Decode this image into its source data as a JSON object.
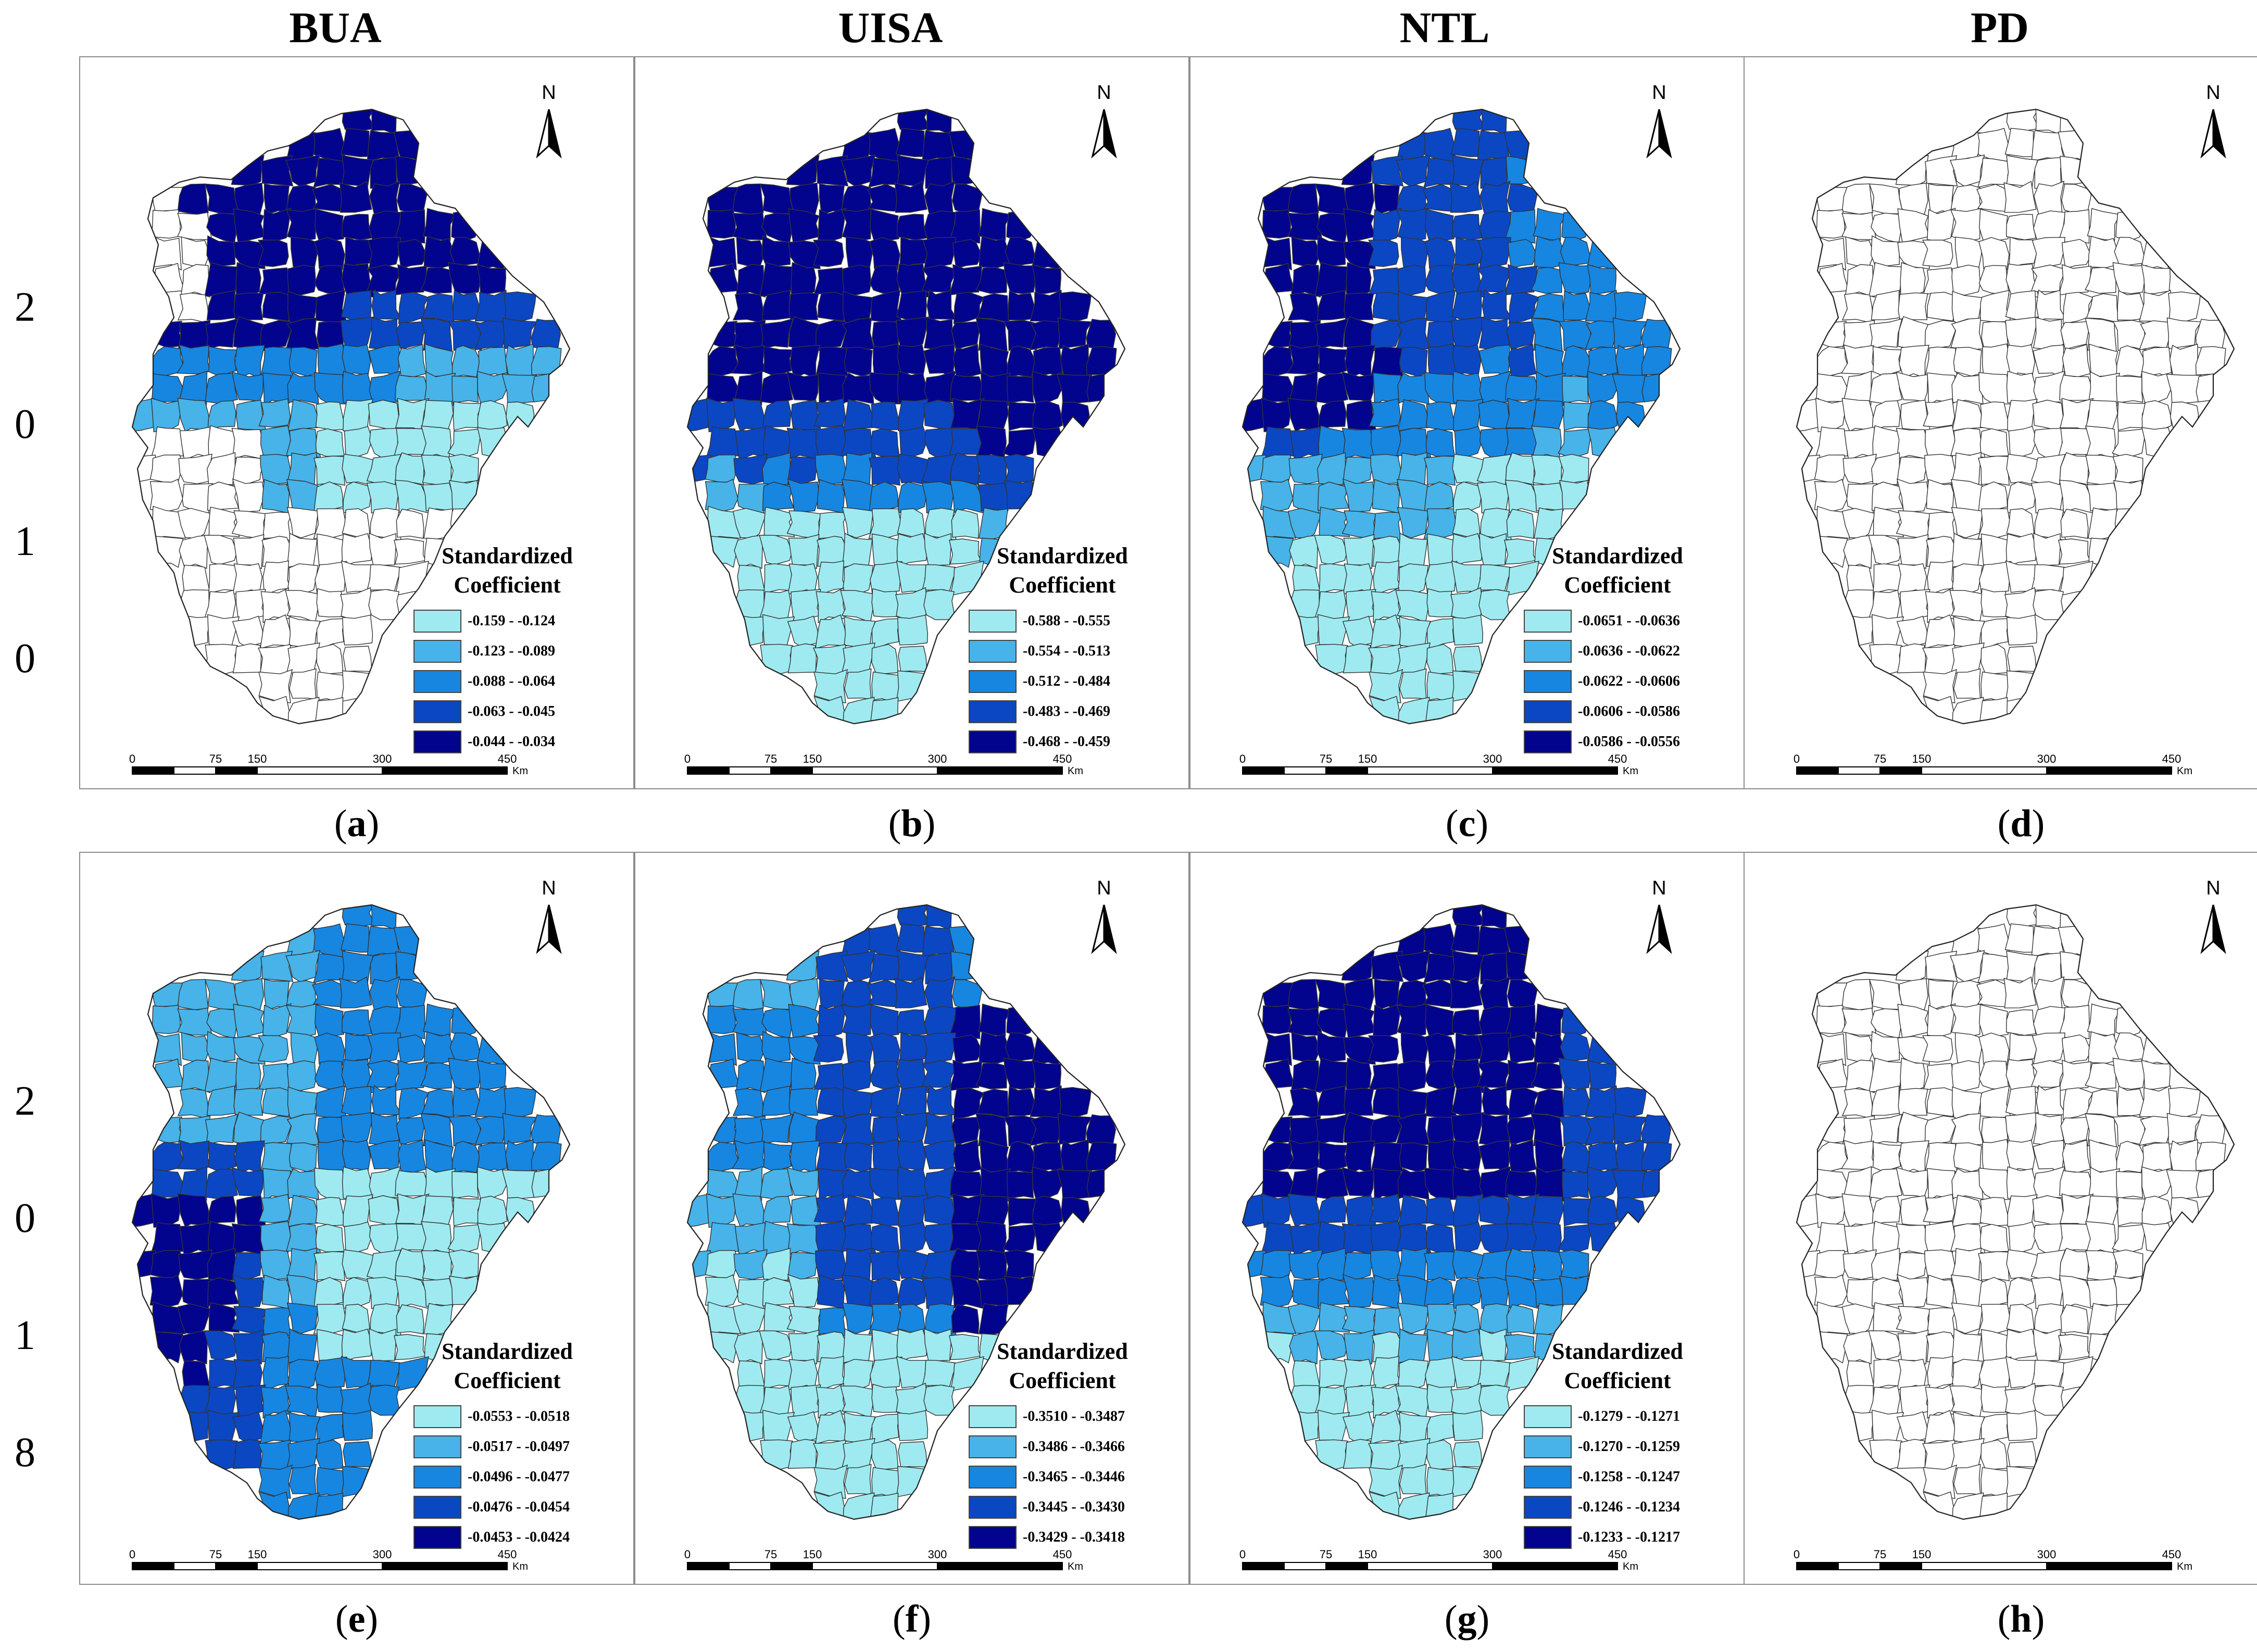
{
  "column_titles": [
    "BUA",
    "UISA",
    "NTL",
    "PD"
  ],
  "row_years": [
    [
      "2",
      "0",
      "1",
      "0"
    ],
    [
      "2",
      "0",
      "1",
      "8"
    ]
  ],
  "scale_labels": [
    "0",
    "75",
    "150",
    "300",
    "450",
    "Km"
  ],
  "north_label": "N",
  "legend_title_line1": "Standardized",
  "legend_title_line2": "Coefficient",
  "colors": {
    "class1": "#9eeaf0",
    "class2": "#47b3e8",
    "class3": "#1786e0",
    "class4": "#0b47c2",
    "class5": "#03048d",
    "empty": "#ffffff"
  },
  "panels": [
    {
      "label_letter": "a",
      "variable": "BUA",
      "year": "2010",
      "pattern": "bua2010",
      "legend": [
        "-0.159 - -0.124",
        "-0.123 - -0.089",
        "-0.088 - -0.064",
        "-0.063 - -0.045",
        "-0.044 - -0.034"
      ]
    },
    {
      "label_letter": "b",
      "variable": "UISA",
      "year": "2010",
      "pattern": "uisa2010",
      "legend": [
        "-0.588 - -0.555",
        "-0.554 - -0.513",
        "-0.512 - -0.484",
        "-0.483 - -0.469",
        "-0.468 - -0.459"
      ]
    },
    {
      "label_letter": "c",
      "variable": "NTL",
      "year": "2010",
      "pattern": "ntl2010",
      "legend": [
        "-0.0651 - -0.0636",
        "-0.0636 - -0.0622",
        "-0.0622 - -0.0606",
        "-0.0606 - -0.0586",
        "-0.0586 - -0.0556"
      ]
    },
    {
      "label_letter": "d",
      "variable": "PD",
      "year": "2010",
      "pattern": "none",
      "legend": []
    },
    {
      "label_letter": "e",
      "variable": "BUA",
      "year": "2018",
      "pattern": "bua2018",
      "legend": [
        "-0.0553 - -0.0518",
        "-0.0517 - -0.0497",
        "-0.0496 - -0.0477",
        "-0.0476 - -0.0454",
        "-0.0453 - -0.0424"
      ]
    },
    {
      "label_letter": "f",
      "variable": "UISA",
      "year": "2018",
      "pattern": "uisa2018",
      "legend": [
        "-0.3510 - -0.3487",
        "-0.3486 - -0.3466",
        "-0.3465 - -0.3446",
        "-0.3445 - -0.3430",
        "-0.3429 - -0.3418"
      ]
    },
    {
      "label_letter": "g",
      "variable": "NTL",
      "year": "2018",
      "pattern": "ntl2018",
      "legend": [
        "-0.1279 - -0.1271",
        "-0.1270 - -0.1259",
        "-0.1258 - -0.1247",
        "-0.1246 - -0.1234",
        "-0.1233 - -0.1217"
      ]
    },
    {
      "label_letter": "h",
      "variable": "PD",
      "year": "2018",
      "pattern": "none",
      "legend": []
    }
  ]
}
